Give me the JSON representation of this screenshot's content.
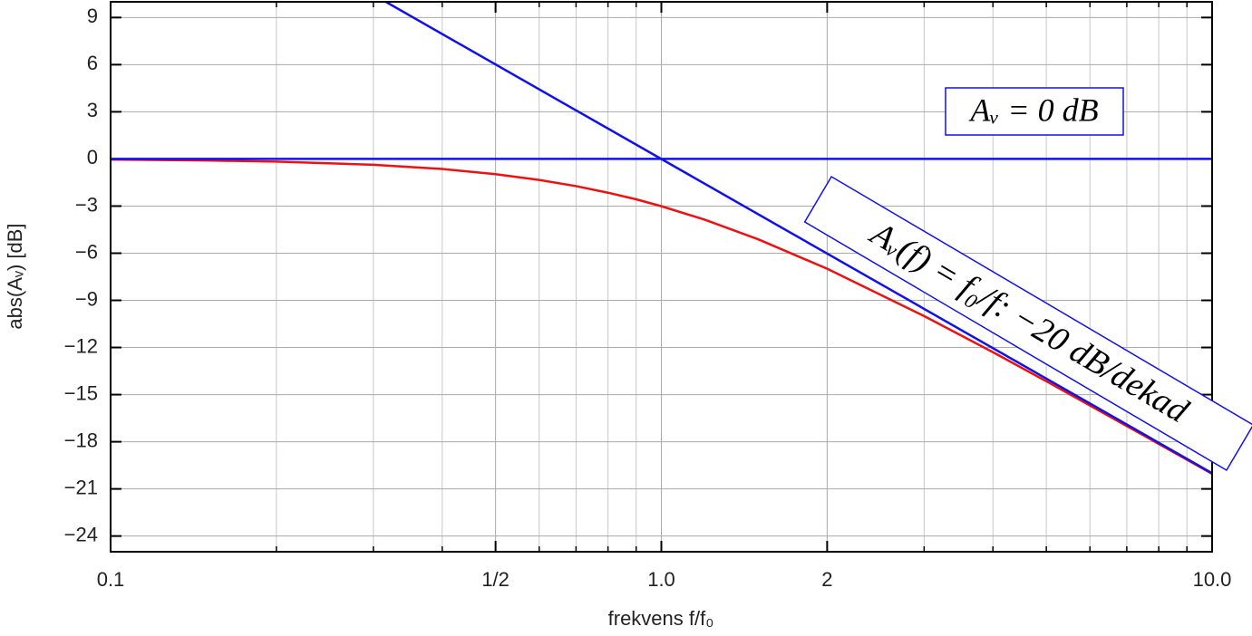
{
  "chart_data": {
    "type": "line",
    "xscale": "log",
    "xlabel": "frekvens f/f₀",
    "ylabel": "abs(Aᵥ) [dB]",
    "xlim": [
      0.1,
      10
    ],
    "ylim": [
      -25,
      10
    ],
    "xticks": [
      0.1,
      {
        "value": 0.5,
        "label": "1/2"
      },
      {
        "value": 1,
        "label": "1.0"
      },
      2,
      {
        "value": 10,
        "label": "10.0"
      }
    ],
    "xminor": [
      0.2,
      0.3,
      0.4,
      0.6,
      0.7,
      0.8,
      0.9,
      3,
      4,
      5,
      6,
      7,
      8,
      9
    ],
    "yticks": [
      9,
      6,
      3,
      0,
      {
        "value": -3,
        "label": "−3"
      },
      {
        "value": -6,
        "label": "−6"
      },
      {
        "value": -9,
        "label": "−9"
      },
      {
        "value": -12,
        "label": "−12"
      },
      {
        "value": -15,
        "label": "−15"
      },
      {
        "value": -18,
        "label": "−18"
      },
      {
        "value": -21,
        "label": "−21"
      },
      {
        "value": -24,
        "label": "−24"
      }
    ],
    "grid": true,
    "series": [
      {
        "color": "#ee1111",
        "x": [
          0.1,
          0.15,
          0.2,
          0.3,
          0.4,
          0.5,
          0.6,
          0.7,
          0.8,
          0.9,
          1.0,
          1.2,
          1.5,
          2,
          3,
          4,
          5,
          7,
          10
        ],
        "values": [
          -0.04,
          -0.1,
          -0.17,
          -0.37,
          -0.64,
          -0.97,
          -1.34,
          -1.73,
          -2.15,
          -2.57,
          -3.01,
          -3.87,
          -5.12,
          -6.99,
          -10.0,
          -12.3,
          -14.15,
          -17.0,
          -20.04
        ]
      },
      {
        "color": "#1111ee",
        "x": [
          0.316,
          10
        ],
        "values": [
          10,
          -20
        ]
      },
      {
        "color": "#1111ee",
        "x": [
          0.1,
          10
        ],
        "values": [
          0,
          0
        ]
      }
    ],
    "annotations": [
      {
        "text": "Aᵥ = 0 dB",
        "color": "#1111ee"
      },
      {
        "text": "Aᵥ(f) = f₀/f: −20 dB/dekad",
        "color": "#1111ee"
      }
    ]
  }
}
